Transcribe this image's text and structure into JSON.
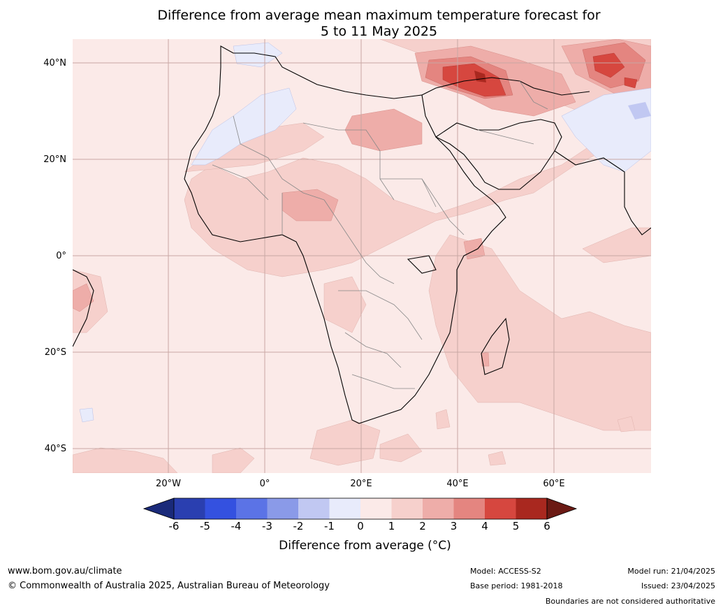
{
  "title": {
    "line1": "Difference from average mean maximum temperature forecast for",
    "line2": "5 to 11 May 2025"
  },
  "axes": {
    "lat_labels": [
      "40°N",
      "20°N",
      "0°",
      "20°S",
      "40°S"
    ],
    "lon_labels": [
      "20°W",
      "0°",
      "20°E",
      "40°E",
      "60°E"
    ]
  },
  "colorbar": {
    "ticks": [
      "-6",
      "-5",
      "-4",
      "-3",
      "-2",
      "-1",
      "0",
      "1",
      "2",
      "3",
      "4",
      "5",
      "6"
    ],
    "colors": [
      "#1a2a7a",
      "#2a3fb0",
      "#3451e0",
      "#5b73e6",
      "#8a9ae8",
      "#c1c8f2",
      "#e8ebfb",
      "#fbeae8",
      "#f6d0cc",
      "#eeada9",
      "#e48580",
      "#d6473f",
      "#a9281f",
      "#6b1a14"
    ],
    "label": "Difference from average (°C)"
  },
  "footer": {
    "website": "www.bom.gov.au/climate",
    "copyright": "© Commonwealth of Australia 2025, Australian Bureau of Meteorology",
    "model": "Model: ACCESS-S2",
    "base_period": "Base period: 1981-2018",
    "model_run": "Model run: 21/04/2025",
    "issued": "Issued: 23/04/2025",
    "disclaimer": "Boundaries are not considered authoritative"
  }
}
